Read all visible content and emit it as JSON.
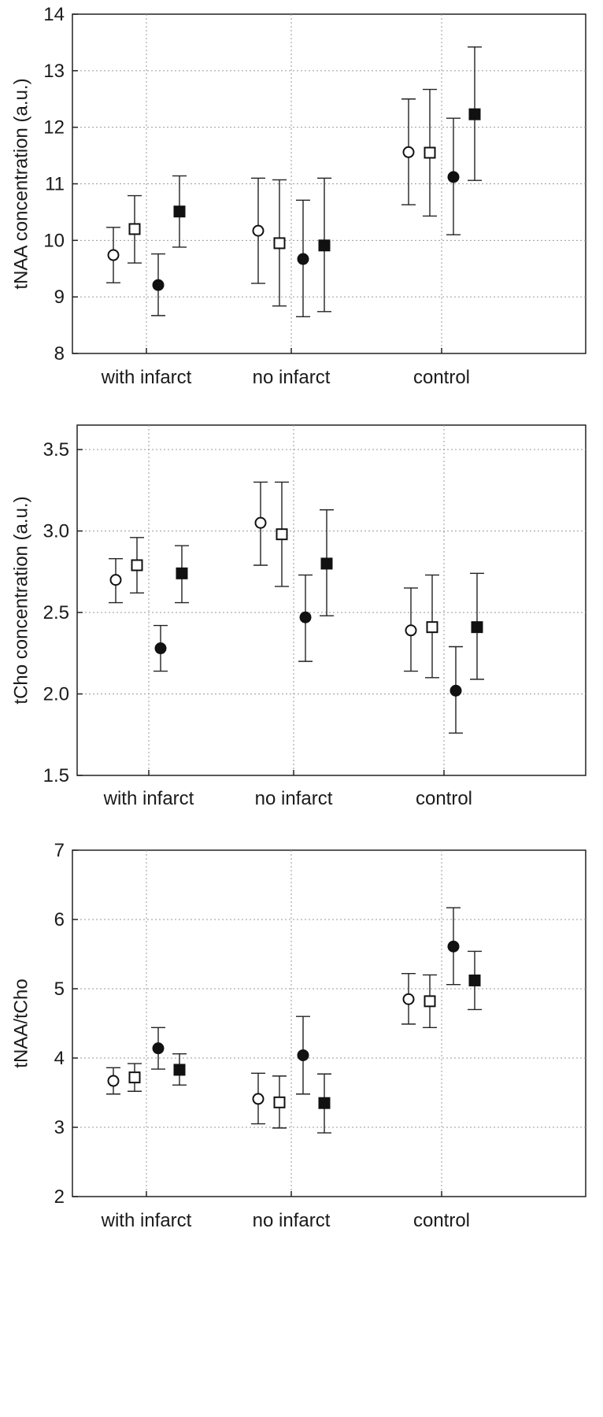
{
  "chart_data": [
    {
      "type": "scatter",
      "ylabel": "tNAA concentration (a.u.)",
      "ylim": [
        8,
        14
      ],
      "yticks": [
        "8",
        "9",
        "10",
        "11",
        "12",
        "13",
        "14"
      ],
      "categories": [
        "with infarct",
        "no infarct",
        "control"
      ],
      "grid": true,
      "series": [
        {
          "marker": "open-circle",
          "values": [
            {
              "mean": 9.74,
              "low": 9.25,
              "high": 10.23
            },
            {
              "mean": 10.17,
              "low": 9.24,
              "high": 11.1
            },
            {
              "mean": 11.56,
              "low": 10.63,
              "high": 12.5
            }
          ]
        },
        {
          "marker": "open-square",
          "values": [
            {
              "mean": 10.2,
              "low": 9.6,
              "high": 10.79
            },
            {
              "mean": 9.95,
              "low": 8.84,
              "high": 11.07
            },
            {
              "mean": 11.55,
              "low": 10.43,
              "high": 12.67
            }
          ]
        },
        {
          "marker": "filled-circle",
          "values": [
            {
              "mean": 9.21,
              "low": 8.67,
              "high": 9.76
            },
            {
              "mean": 9.67,
              "low": 8.65,
              "high": 10.71
            },
            {
              "mean": 11.12,
              "low": 10.1,
              "high": 12.16
            }
          ]
        },
        {
          "marker": "filled-square",
          "values": [
            {
              "mean": 10.51,
              "low": 9.88,
              "high": 11.14
            },
            {
              "mean": 9.91,
              "low": 8.74,
              "high": 11.1
            },
            {
              "mean": 12.23,
              "low": 11.06,
              "high": 13.42
            }
          ]
        }
      ]
    },
    {
      "type": "scatter",
      "ylabel": "tCho concentration (a.u.)",
      "ylim": [
        1.5,
        3.65
      ],
      "yticks": [
        "1.5",
        "2.0",
        "2.5",
        "3.0",
        "3.5"
      ],
      "categories": [
        "with infarct",
        "no infarct",
        "control"
      ],
      "grid": true,
      "series": [
        {
          "marker": "open-circle",
          "values": [
            {
              "mean": 2.7,
              "low": 2.56,
              "high": 2.83
            },
            {
              "mean": 3.05,
              "low": 2.79,
              "high": 3.3
            },
            {
              "mean": 2.39,
              "low": 2.14,
              "high": 2.65
            }
          ]
        },
        {
          "marker": "open-square",
          "values": [
            {
              "mean": 2.79,
              "low": 2.62,
              "high": 2.96
            },
            {
              "mean": 2.98,
              "low": 2.66,
              "high": 3.3
            },
            {
              "mean": 2.41,
              "low": 2.1,
              "high": 2.73
            }
          ]
        },
        {
          "marker": "filled-circle",
          "values": [
            {
              "mean": 2.28,
              "low": 2.14,
              "high": 2.42
            },
            {
              "mean": 2.47,
              "low": 2.2,
              "high": 2.73
            },
            {
              "mean": 2.02,
              "low": 1.76,
              "high": 2.29
            }
          ]
        },
        {
          "marker": "filled-square",
          "values": [
            {
              "mean": 2.74,
              "low": 2.56,
              "high": 2.91
            },
            {
              "mean": 2.8,
              "low": 2.48,
              "high": 3.13
            },
            {
              "mean": 2.41,
              "low": 2.09,
              "high": 2.74
            }
          ]
        }
      ]
    },
    {
      "type": "scatter",
      "ylabel": "tNAA/tCho",
      "ylim": [
        2,
        7
      ],
      "yticks": [
        "2",
        "3",
        "4",
        "5",
        "6",
        "7"
      ],
      "categories": [
        "with infarct",
        "no infarct",
        "control"
      ],
      "grid": true,
      "series": [
        {
          "marker": "open-circle",
          "values": [
            {
              "mean": 3.67,
              "low": 3.48,
              "high": 3.86
            },
            {
              "mean": 3.41,
              "low": 3.05,
              "high": 3.78
            },
            {
              "mean": 4.85,
              "low": 4.49,
              "high": 5.22
            }
          ]
        },
        {
          "marker": "open-square",
          "values": [
            {
              "mean": 3.72,
              "low": 3.52,
              "high": 3.92
            },
            {
              "mean": 3.36,
              "low": 2.99,
              "high": 3.74
            },
            {
              "mean": 4.82,
              "low": 4.44,
              "high": 5.2
            }
          ]
        },
        {
          "marker": "filled-circle",
          "values": [
            {
              "mean": 4.14,
              "low": 3.84,
              "high": 4.44
            },
            {
              "mean": 4.04,
              "low": 3.48,
              "high": 4.6
            },
            {
              "mean": 5.61,
              "low": 5.06,
              "high": 6.17
            }
          ]
        },
        {
          "marker": "filled-square",
          "values": [
            {
              "mean": 3.83,
              "low": 3.61,
              "high": 4.06
            },
            {
              "mean": 3.35,
              "low": 2.92,
              "high": 3.77
            },
            {
              "mean": 5.12,
              "low": 4.7,
              "high": 5.54
            }
          ]
        }
      ]
    }
  ]
}
